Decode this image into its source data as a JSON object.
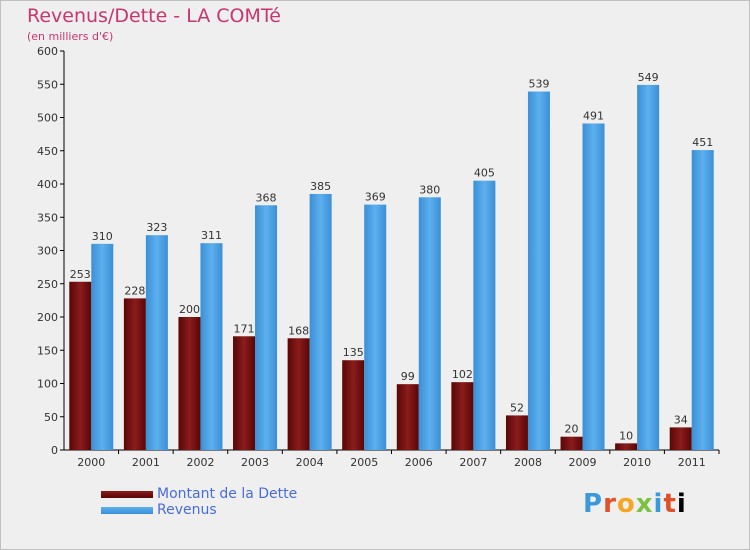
{
  "chart_data": {
    "type": "bar",
    "title": "Revenus/Dette - LA COMTé",
    "subtitle": "(en milliers d'€)",
    "categories": [
      "2000",
      "2001",
      "2002",
      "2003",
      "2004",
      "2005",
      "2006",
      "2007",
      "2008",
      "2009",
      "2010",
      "2011"
    ],
    "series": [
      {
        "name": "Montant de la Dette",
        "color": "#6e0a0a",
        "values": [
          253,
          228,
          200,
          171,
          168,
          135,
          99,
          102,
          52,
          20,
          10,
          34
        ]
      },
      {
        "name": "Revenus",
        "color": "#4a9fe0",
        "values": [
          310,
          323,
          311,
          368,
          385,
          369,
          380,
          405,
          539,
          491,
          549,
          451
        ]
      }
    ],
    "ylim": [
      0,
      600
    ],
    "yticks": [
      0,
      50,
      100,
      150,
      200,
      250,
      300,
      350,
      400,
      450,
      500,
      550,
      600
    ],
    "grid": false,
    "legend_position": "bottom-left"
  },
  "logo": {
    "letters": [
      "P",
      "r",
      "o",
      "x",
      "i",
      "t",
      "i"
    ]
  }
}
